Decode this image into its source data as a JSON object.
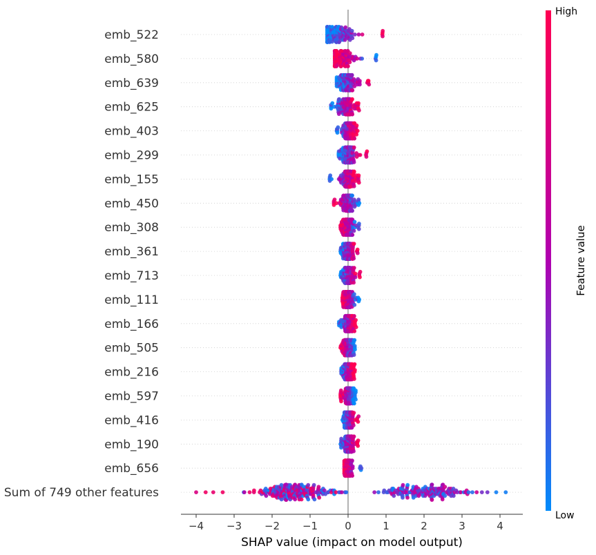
{
  "chart_data": {
    "type": "scatter",
    "subtype": "shap-beeswarm",
    "title": "",
    "xlabel": "SHAP value (impact on model output)",
    "ylabel": "",
    "xlim": [
      -4.4,
      4.6
    ],
    "xticks": [
      -4,
      -3,
      -2,
      -1,
      0,
      1,
      2,
      3,
      4
    ],
    "xtick_labels": [
      "−4",
      "−3",
      "−2",
      "−1",
      "0",
      "1",
      "2",
      "3",
      "4"
    ],
    "grid": false,
    "colorbar": {
      "title": "Feature value",
      "high_label": "High",
      "low_label": "Low",
      "high_color": "#ff0052",
      "mid_color": "#b000b0",
      "low_color": "#008bfb"
    },
    "features": [
      {
        "name": "emb_522",
        "min": -0.55,
        "max": 0.95,
        "center": -0.3,
        "low_side": "left",
        "spread": 0.45,
        "count": 120
      },
      {
        "name": "emb_580",
        "min": -0.35,
        "max": 0.75,
        "center": -0.15,
        "low_side": "right",
        "spread": 0.3,
        "count": 110
      },
      {
        "name": "emb_639",
        "min": -0.3,
        "max": 0.55,
        "center": 0.0,
        "low_side": "left",
        "spread": 0.25,
        "count": 110
      },
      {
        "name": "emb_625",
        "min": -0.45,
        "max": 0.3,
        "center": -0.05,
        "low_side": "left",
        "spread": 0.2,
        "count": 110
      },
      {
        "name": "emb_403",
        "min": -0.3,
        "max": 0.25,
        "center": 0.0,
        "low_side": "left",
        "spread": 0.18,
        "count": 110
      },
      {
        "name": "emb_299",
        "min": -0.25,
        "max": 0.5,
        "center": 0.0,
        "low_side": "left",
        "spread": 0.2,
        "count": 110
      },
      {
        "name": "emb_155",
        "min": -0.5,
        "max": 0.3,
        "center": 0.0,
        "low_side": "left",
        "spread": 0.18,
        "count": 110
      },
      {
        "name": "emb_450",
        "min": -0.4,
        "max": 0.3,
        "center": 0.0,
        "low_side": "right",
        "spread": 0.18,
        "count": 110
      },
      {
        "name": "emb_308",
        "min": -0.2,
        "max": 0.3,
        "center": 0.0,
        "low_side": "right",
        "spread": 0.15,
        "count": 110
      },
      {
        "name": "emb_361",
        "min": -0.2,
        "max": 0.28,
        "center": 0.0,
        "low_side": "left",
        "spread": 0.15,
        "count": 110
      },
      {
        "name": "emb_713",
        "min": -0.2,
        "max": 0.32,
        "center": 0.0,
        "low_side": "left",
        "spread": 0.14,
        "count": 100
      },
      {
        "name": "emb_111",
        "min": -0.15,
        "max": 0.3,
        "center": 0.0,
        "low_side": "right",
        "spread": 0.13,
        "count": 100
      },
      {
        "name": "emb_166",
        "min": -0.25,
        "max": 0.22,
        "center": 0.0,
        "low_side": "left",
        "spread": 0.15,
        "count": 110
      },
      {
        "name": "emb_505",
        "min": -0.2,
        "max": 0.18,
        "center": 0.0,
        "low_side": "right",
        "spread": 0.13,
        "count": 110
      },
      {
        "name": "emb_216",
        "min": -0.18,
        "max": 0.18,
        "center": 0.0,
        "low_side": "left",
        "spread": 0.13,
        "count": 110
      },
      {
        "name": "emb_597",
        "min": -0.2,
        "max": 0.2,
        "center": 0.0,
        "low_side": "right",
        "spread": 0.13,
        "count": 110
      },
      {
        "name": "emb_416",
        "min": -0.15,
        "max": 0.28,
        "center": 0.0,
        "low_side": "left",
        "spread": 0.13,
        "count": 110
      },
      {
        "name": "emb_190",
        "min": -0.2,
        "max": 0.28,
        "center": 0.0,
        "low_side": "left",
        "spread": 0.13,
        "count": 110
      },
      {
        "name": "emb_656",
        "min": -0.1,
        "max": 0.35,
        "center": 0.0,
        "low_side": "right",
        "spread": 0.1,
        "count": 80
      }
    ],
    "sum_other": {
      "name": "Sum of 749 other features",
      "min": -4.0,
      "max": 4.15,
      "left_cluster_center": -1.4,
      "right_cluster_center": 2.1
    }
  }
}
